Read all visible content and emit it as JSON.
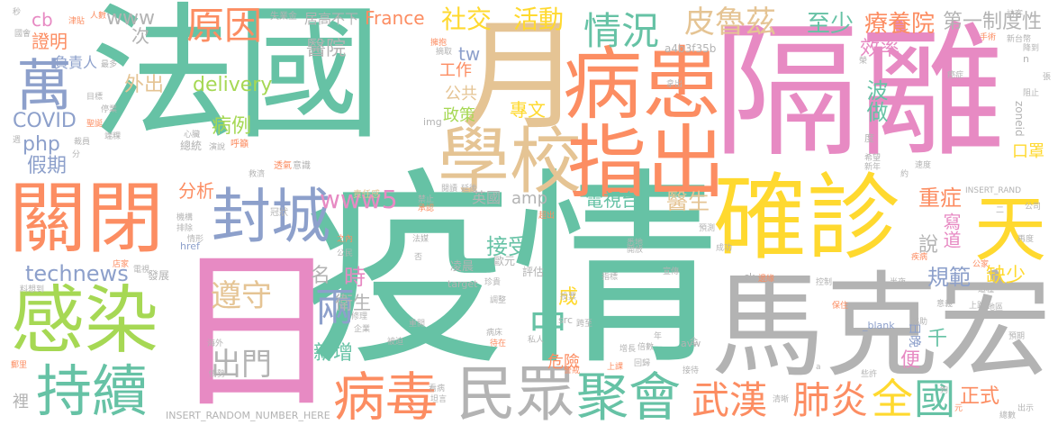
{
  "palette": {
    "pink": "#e78ac3",
    "teal": "#66c2a5",
    "orange": "#fc8d62",
    "blue": "#8da0cb",
    "yellow": "#ffd92f",
    "tan": "#e5c494",
    "green": "#a6d854",
    "gray": "#b3b3b3"
  },
  "words": [
    {
      "text": "法國"
    },
    {
      "text": "隔離"
    },
    {
      "text": "疫情"
    },
    {
      "text": "日"
    },
    {
      "text": "月"
    },
    {
      "text": "馬克宏"
    },
    {
      "text": "病患"
    },
    {
      "text": "學校"
    },
    {
      "text": "指出"
    },
    {
      "text": "確診"
    },
    {
      "text": "關閉"
    },
    {
      "text": "感染"
    },
    {
      "text": "封城"
    },
    {
      "text": "持續"
    },
    {
      "text": "民眾"
    },
    {
      "text": "聚會"
    },
    {
      "text": "病毒"
    },
    {
      "text": "萬"
    },
    {
      "text": "天"
    },
    {
      "text": "武漢"
    },
    {
      "text": "肺炎"
    },
    {
      "text": "全"
    },
    {
      "text": "國"
    },
    {
      "text": "原因"
    },
    {
      "text": "情況"
    },
    {
      "text": "皮魯茲"
    },
    {
      "text": "社交"
    },
    {
      "text": "活動"
    },
    {
      "text": "遵守"
    },
    {
      "text": "出門"
    },
    {
      "text": "兩"
    },
    {
      "text": "中"
    },
    {
      "text": "至少"
    },
    {
      "text": "療養院"
    },
    {
      "text": "第一制度性"
    },
    {
      "text": "www"
    },
    {
      "text": "cb"
    },
    {
      "text": "證明"
    },
    {
      "text": "負責人"
    },
    {
      "text": "醫院"
    },
    {
      "text": "France"
    },
    {
      "text": "居高不下"
    },
    {
      "text": "效率"
    },
    {
      "text": "delivery"
    },
    {
      "text": "外出"
    },
    {
      "text": "COVID"
    },
    {
      "text": "php"
    },
    {
      "text": "假期"
    },
    {
      "text": "病例"
    },
    {
      "text": "次"
    },
    {
      "text": "technews"
    },
    {
      "text": "www5"
    },
    {
      "text": "amp"
    },
    {
      "text": "電視台"
    },
    {
      "text": "醫生"
    },
    {
      "text": "重症"
    },
    {
      "text": "正式"
    },
    {
      "text": "規範"
    },
    {
      "text": "缺少"
    },
    {
      "text": "接受"
    },
    {
      "text": "衛生"
    },
    {
      "text": "新增"
    },
    {
      "text": "危險"
    },
    {
      "text": "成"
    },
    {
      "text": "時"
    },
    {
      "text": "名"
    },
    {
      "text": "分析"
    },
    {
      "text": "英國"
    },
    {
      "text": "tw"
    },
    {
      "text": "工作"
    },
    {
      "text": "公共"
    },
    {
      "text": "政策"
    },
    {
      "text": "專文"
    },
    {
      "text": "波做"
    },
    {
      "text": "口罩"
    },
    {
      "text": "說"
    },
    {
      "text": "寫道"
    },
    {
      "text": "千"
    },
    {
      "text": "便"
    },
    {
      "text": "日晚"
    },
    {
      "text": "a4b3f35b"
    },
    {
      "text": "zoneid"
    },
    {
      "text": "INSERT_RANDOM_NUMBER_HERE"
    },
    {
      "text": "INSERT_RAND"
    },
    {
      "text": "_blank"
    },
    {
      "text": "href"
    },
    {
      "text": "target"
    },
    {
      "text": "img"
    },
    {
      "text": "src"
    },
    {
      "text": "avw"
    },
    {
      "text": "ck"
    },
    {
      "text": "凌晨"
    },
    {
      "text": "歐元"
    },
    {
      "text": "評估"
    },
    {
      "text": "失業金"
    },
    {
      "text": "人數"
    },
    {
      "text": "津貼"
    },
    {
      "text": "國會"
    },
    {
      "text": "最多"
    },
    {
      "text": "目標"
    },
    {
      "text": "停業"
    },
    {
      "text": "聖誕"
    },
    {
      "text": "端粿"
    },
    {
      "text": "裁員"
    },
    {
      "text": "總統"
    },
    {
      "text": "呼籲"
    },
    {
      "text": "心臟"
    },
    {
      "text": "演說"
    },
    {
      "text": "透氣"
    },
    {
      "text": "意識"
    },
    {
      "text": "救濟"
    },
    {
      "text": "責任感"
    },
    {
      "text": "禁止"
    },
    {
      "text": "承認"
    },
    {
      "text": "機構"
    },
    {
      "text": "排除"
    },
    {
      "text": "情形"
    },
    {
      "text": "冠狀"
    },
    {
      "text": "法媒"
    },
    {
      "text": "之內"
    },
    {
      "text": "公民"
    },
    {
      "text": "店家"
    },
    {
      "text": "電視"
    },
    {
      "text": "發展"
    },
    {
      "text": "料想到"
    },
    {
      "text": "海外"
    },
    {
      "text": "情勢"
    },
    {
      "text": "郵里"
    },
    {
      "text": "裡"
    },
    {
      "text": "秒"
    },
    {
      "text": "擁抱"
    },
    {
      "text": "拿出"
    },
    {
      "text": "訪客"
    },
    {
      "text": "手術"
    },
    {
      "text": "新台幣"
    },
    {
      "text": "降到"
    },
    {
      "text": "癌症"
    },
    {
      "text": "阻止"
    },
    {
      "text": "度"
    },
    {
      "text": "希望"
    },
    {
      "text": "新年"
    },
    {
      "text": "速度"
    },
    {
      "text": "公司"
    },
    {
      "text": "再度"
    },
    {
      "text": "預期"
    },
    {
      "text": "預測"
    },
    {
      "text": "疾病"
    },
    {
      "text": "公家"
    },
    {
      "text": "控制"
    },
    {
      "text": "半夜"
    },
    {
      "text": "上路"
    },
    {
      "text": "保住"
    },
    {
      "text": "協助"
    },
    {
      "text": "地區"
    },
    {
      "text": "這種"
    },
    {
      "text": "意義"
    },
    {
      "text": "接待"
    },
    {
      "text": "倍數"
    },
    {
      "text": "增長"
    },
    {
      "text": "回歸"
    },
    {
      "text": "上課"
    },
    {
      "text": "看病"
    },
    {
      "text": "坦言"
    },
    {
      "text": "清晰"
    },
    {
      "text": "總數"
    },
    {
      "text": "出示"
    },
    {
      "text": "張"
    },
    {
      "text": "約"
    },
    {
      "text": "元"
    },
    {
      "text": "夠"
    },
    {
      "text": "些許"
    },
    {
      "text": "企業"
    },
    {
      "text": "被迫"
    },
    {
      "text": "重開"
    },
    {
      "text": "待在"
    },
    {
      "text": "病床"
    },
    {
      "text": "私人"
    },
    {
      "text": "跨至"
    },
    {
      "text": "投票"
    },
    {
      "text": "調整"
    },
    {
      "text": "珍貴"
    },
    {
      "text": "修理"
    },
    {
      "text": "開放"
    },
    {
      "text": "閱讀"
    },
    {
      "text": "延後"
    },
    {
      "text": "成功"
    },
    {
      "text": "警戒"
    },
    {
      "text": "指標"
    },
    {
      "text": "宣傳"
    },
    {
      "text": "邊緣"
    },
    {
      "text": "悉地"
    },
    {
      "text": "超出"
    },
    {
      "text": "否"
    },
    {
      "text": "摘取"
    },
    {
      "text": "榮"
    },
    {
      "text": "二"
    },
    {
      "text": "a"
    },
    {
      "text": "n"
    },
    {
      "text": "全 "
    },
    {
      "text": "年"
    },
    {
      "text": "分"
    },
    {
      "text": "週"
    }
  ]
}
